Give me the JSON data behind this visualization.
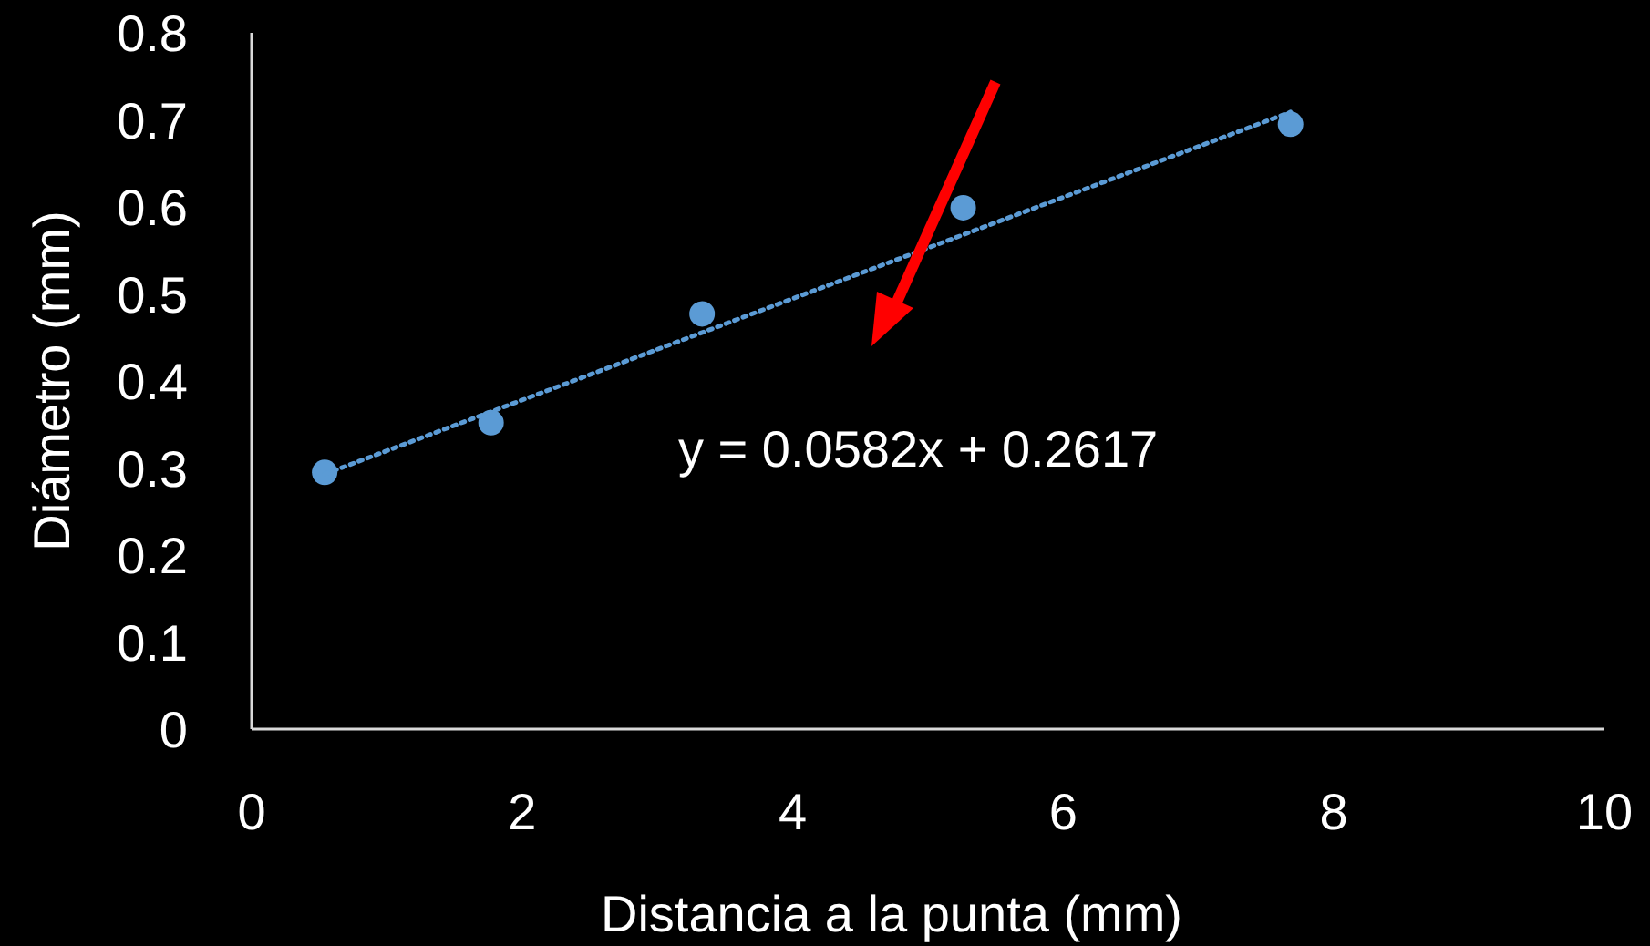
{
  "chart_data": {
    "type": "scatter",
    "xlabel": "Distancia a la punta (mm)",
    "ylabel": "Diámetro (mm)",
    "xlim": [
      0,
      10
    ],
    "xticks": [
      0,
      2,
      4,
      6,
      8,
      10
    ],
    "ylim": [
      0,
      0.8
    ],
    "yticks": [
      0,
      0.1,
      0.2,
      0.3,
      0.4,
      0.5,
      0.6,
      0.7,
      0.8
    ],
    "grid": false,
    "marker": "circle",
    "series": [
      {
        "color": "#5b9bd5",
        "x": [
          0.54,
          1.77,
          3.33,
          5.26,
          7.68
        ],
        "values": [
          0.295,
          0.352,
          0.477,
          0.599,
          0.695
        ]
      },
      {
        "type": "line",
        "color": "#5b9bd5",
        "line_style": "dotted",
        "marker": "none",
        "x": [
          0.54,
          7.68
        ],
        "values": [
          0.293,
          0.709
        ]
      }
    ],
    "annotations": [
      "y = 0.0582x + 0.2617"
    ]
  }
}
